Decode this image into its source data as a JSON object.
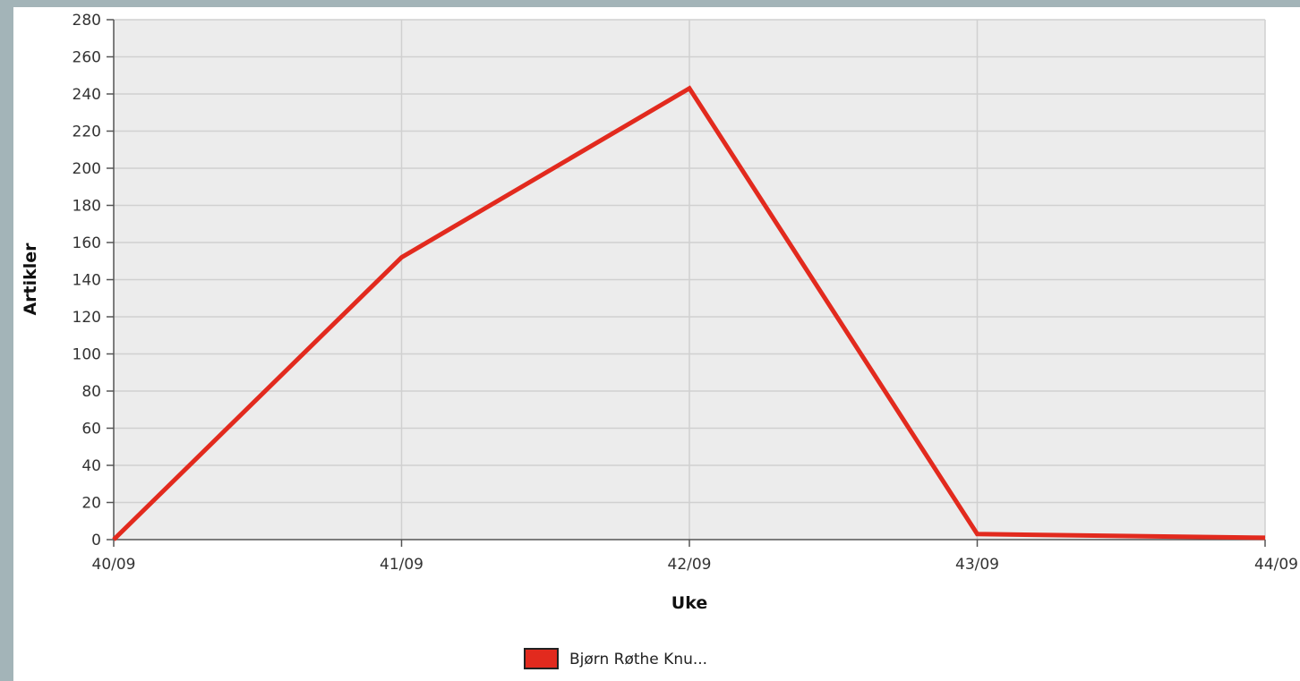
{
  "chart_data": {
    "type": "line",
    "title": "",
    "xlabel": "Uke",
    "ylabel": "Artikler",
    "categories": [
      "40/09",
      "41/09",
      "42/09",
      "43/09",
      "44/09"
    ],
    "ylim": [
      0,
      280
    ],
    "yticks": [
      0,
      20,
      40,
      60,
      80,
      100,
      120,
      140,
      160,
      180,
      200,
      220,
      240,
      260,
      280
    ],
    "grid": true,
    "legend_position": "bottom",
    "series": [
      {
        "name": "Bjørn Røthe Knu...",
        "color": "#e22a1e",
        "values": [
          0,
          152,
          243,
          3,
          1
        ]
      }
    ],
    "colors": {
      "plot_background": "#ececec",
      "grid": "#d0d0d0",
      "frame": "#a3b4b8"
    }
  }
}
